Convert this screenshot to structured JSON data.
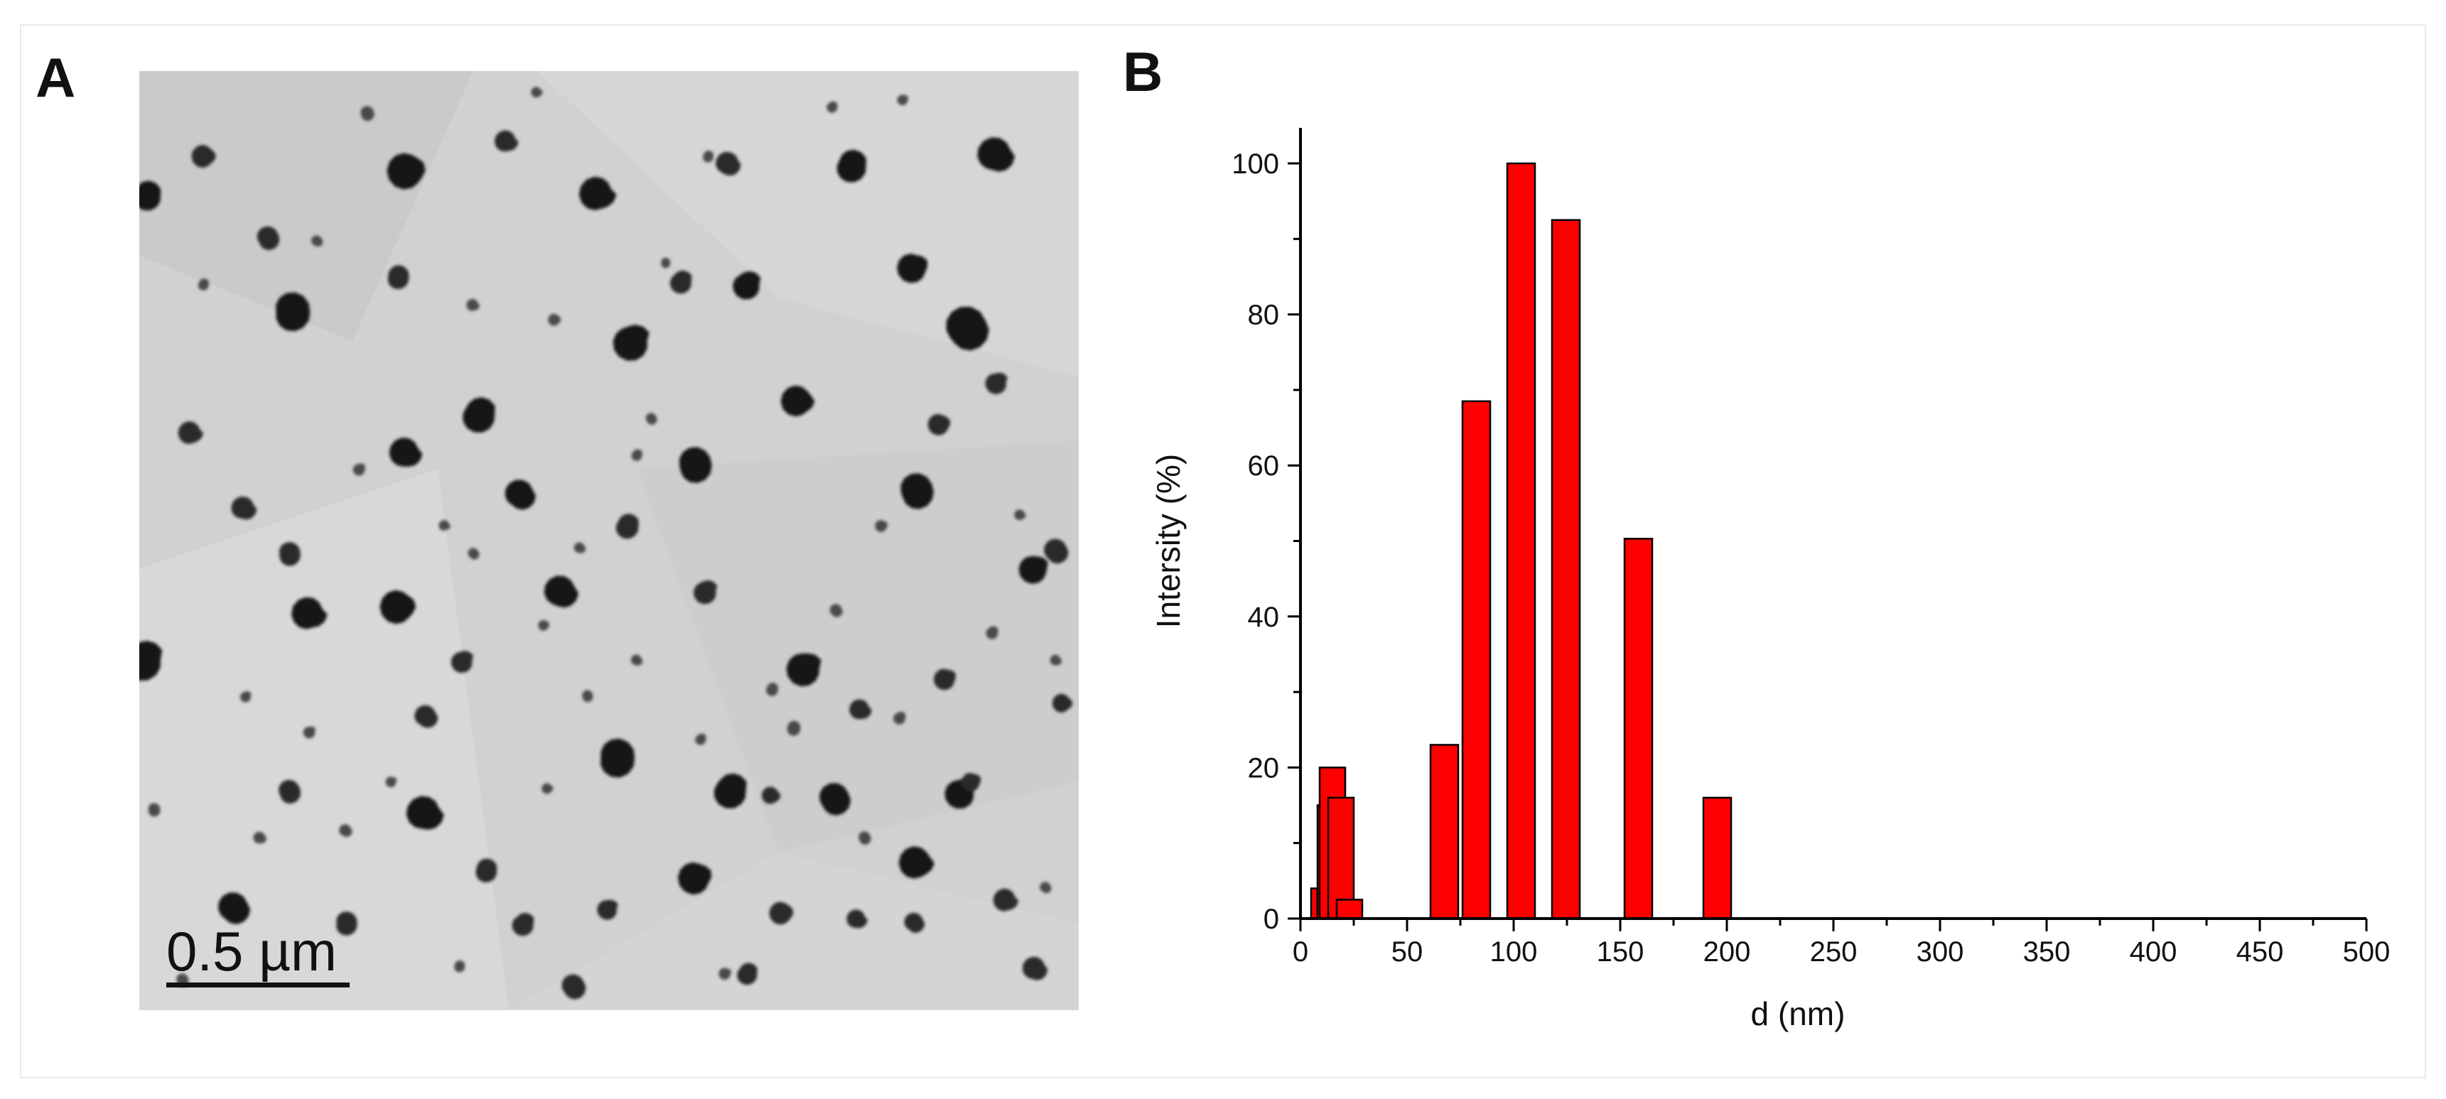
{
  "panels": {
    "a_label": "A",
    "b_label": "B"
  },
  "micrograph": {
    "scale_bar_text": "0.5 µm",
    "background_color": "#d1d1d1",
    "particle_color": "#151515"
  },
  "chart_data": {
    "type": "bar",
    "xlabel": "d (nm)",
    "ylabel": "Intersity (%)",
    "xlim": [
      0,
      500
    ],
    "ylim": [
      0,
      100
    ],
    "xticks": [
      0,
      50,
      100,
      150,
      200,
      250,
      300,
      350,
      400,
      450,
      500
    ],
    "yticks": [
      0,
      20,
      40,
      60,
      80,
      100
    ],
    "grid": false,
    "bar_color": "#ff0000",
    "bar_edge_color": "#000000",
    "bars": [
      {
        "x_start": 5,
        "x_end": 8,
        "value": 4
      },
      {
        "x_start": 8,
        "x_end": 11,
        "value": 15
      },
      {
        "x_start": 11,
        "x_end": 15,
        "value": 16
      },
      {
        "x_start": 9,
        "x_end": 21,
        "value": 20
      },
      {
        "x_start": 13,
        "x_end": 25,
        "value": 16
      },
      {
        "x_start": 17,
        "x_end": 29,
        "value": 2.5
      },
      {
        "x_start": 61,
        "x_end": 74,
        "value": 23
      },
      {
        "x_start": 76,
        "x_end": 89,
        "value": 68.5
      },
      {
        "x_start": 97,
        "x_end": 110,
        "value": 100
      },
      {
        "x_start": 118,
        "x_end": 131,
        "value": 92.5
      },
      {
        "x_start": 152,
        "x_end": 165,
        "value": 50.3
      },
      {
        "x_start": 189,
        "x_end": 202,
        "value": 16
      }
    ]
  }
}
